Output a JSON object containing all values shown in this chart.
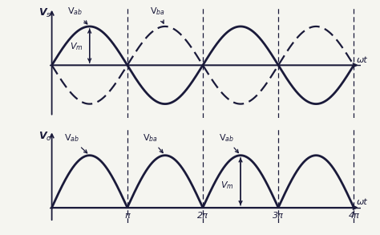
{
  "background_color": "#f5f5f0",
  "line_color": "#1a1a3a",
  "figsize": [
    4.74,
    2.93
  ],
  "dpi": 100,
  "top_vs": "V$_s$",
  "top_wt": "ωt",
  "bot_vo": "V$_o$",
  "bot_wt": "ωt",
  "x_ticks": [
    3.14159265,
    6.2831853,
    9.42477796,
    12.56637061
  ],
  "x_tick_labels": [
    "π",
    "2π",
    "3π",
    "4π"
  ],
  "pi": 3.14159265358979
}
